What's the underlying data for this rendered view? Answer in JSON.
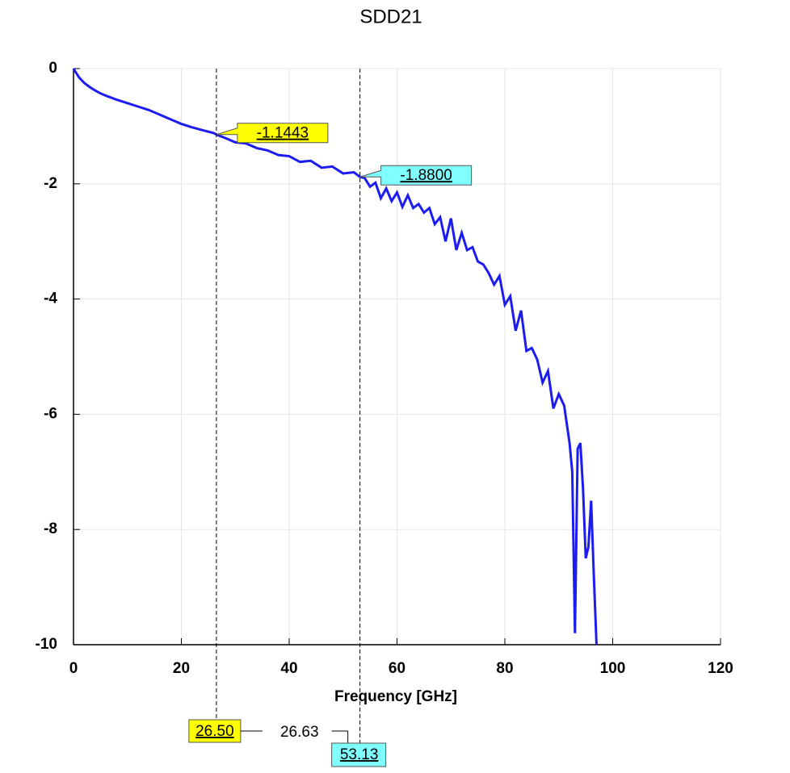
{
  "chart_data": {
    "type": "line",
    "title": "SDD21",
    "x_label": "Frequency [GHz]",
    "xlim": [
      0,
      120
    ],
    "xticks": [
      0,
      20,
      40,
      60,
      80,
      100,
      120
    ],
    "ylim": [
      -10,
      0
    ],
    "yticks": [
      0,
      -2,
      -4,
      -6,
      -8,
      -10
    ],
    "grid": true,
    "series": [
      {
        "color": "#1c1cf0",
        "x": [
          0,
          1,
          2,
          3,
          4,
          5,
          6,
          8,
          10,
          12,
          14,
          16,
          18,
          20,
          22,
          24,
          26,
          26.5,
          28,
          30,
          32,
          34,
          36,
          38,
          40,
          42,
          44,
          46,
          48,
          50,
          52,
          53.13,
          54,
          55,
          56,
          57,
          58,
          59,
          60,
          61,
          62,
          63,
          64,
          65,
          66,
          67,
          68,
          69,
          70,
          71,
          72,
          73,
          74,
          75,
          76,
          77,
          78,
          79,
          80,
          81,
          82,
          83,
          84,
          85,
          86,
          87,
          88,
          89,
          90,
          91,
          92,
          92.5,
          93,
          93.5,
          94,
          94.5,
          95,
          95.5,
          96,
          96.5,
          97
        ],
        "values": [
          0,
          -0.15,
          -0.25,
          -0.32,
          -0.38,
          -0.43,
          -0.47,
          -0.54,
          -0.6,
          -0.66,
          -0.72,
          -0.8,
          -0.88,
          -0.96,
          -1.02,
          -1.07,
          -1.12,
          -1.1443,
          -1.2,
          -1.28,
          -1.3,
          -1.38,
          -1.42,
          -1.5,
          -1.52,
          -1.62,
          -1.6,
          -1.72,
          -1.7,
          -1.82,
          -1.8,
          -1.88,
          -1.9,
          -2.05,
          -1.98,
          -2.25,
          -2.08,
          -2.3,
          -2.15,
          -2.4,
          -2.2,
          -2.42,
          -2.35,
          -2.5,
          -2.42,
          -2.7,
          -2.58,
          -3.0,
          -2.6,
          -3.15,
          -2.85,
          -3.15,
          -3.1,
          -3.35,
          -3.4,
          -3.55,
          -3.75,
          -3.6,
          -4.1,
          -3.95,
          -4.55,
          -4.2,
          -4.9,
          -4.85,
          -5.05,
          -5.45,
          -5.25,
          -5.9,
          -5.65,
          -5.85,
          -6.5,
          -7.0,
          -9.8,
          -6.6,
          -6.5,
          -7.3,
          -8.5,
          -8.3,
          -7.5,
          -8.8,
          -10
        ]
      }
    ],
    "markers": [
      {
        "x": 26.5,
        "x_label": "26.50",
        "y": -1.1443,
        "y_label": "-1.1443",
        "color": "#ffff00"
      },
      {
        "x": 53.13,
        "y": -1.88,
        "y_label": "-1.8800",
        "color": "#80ffff"
      }
    ],
    "delta": 26.63
  }
}
